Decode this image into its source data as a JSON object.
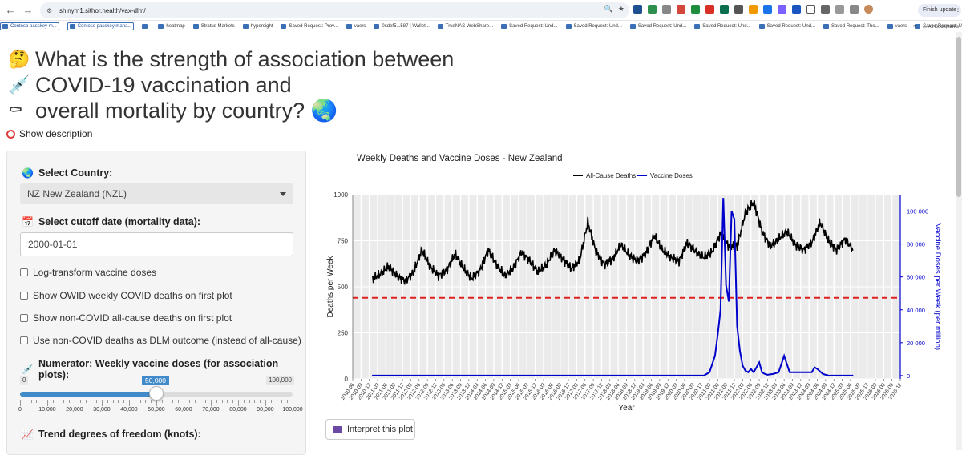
{
  "browser": {
    "url": "shinym1.sithor.health/vax-dlm/",
    "nav": [
      "←",
      "→",
      "↻"
    ],
    "finish_update": "Finish update",
    "bookmarks": [
      {
        "label": "Contoso passkey m...",
        "boxed": true
      },
      {
        "label": "Contoso passkey mana...",
        "boxed": true
      },
      {
        "label": "",
        "boxed": false
      },
      {
        "label": "heatmap",
        "boxed": false
      },
      {
        "label": "Stratus Markets",
        "boxed": false
      },
      {
        "label": "hypersight",
        "boxed": false
      },
      {
        "label": "Saved Request: Prov...",
        "boxed": false
      },
      {
        "label": "vaers",
        "boxed": false
      },
      {
        "label": "0xdef5...587 | Wallet...",
        "boxed": false
      },
      {
        "label": "TrueNAS WebShare...",
        "boxed": false
      },
      {
        "label": "Saved Request: Und...",
        "boxed": false
      },
      {
        "label": "Saved Request: Und...",
        "boxed": false
      },
      {
        "label": "Saved Request: Und...",
        "boxed": false
      },
      {
        "label": "Saved Request: Und...",
        "boxed": false
      },
      {
        "label": "Saved Request: Und...",
        "boxed": false
      },
      {
        "label": "Saved Request: The...",
        "boxed": false
      },
      {
        "label": "vaers",
        "boxed": false
      },
      {
        "label": "Saved Request: Und...",
        "boxed": false
      }
    ],
    "more": "»",
    "all_bookmarks": "All Bookmarks"
  },
  "page": {
    "title_lines": [
      {
        "emoji": "🤔",
        "text": "What is the strength of association between"
      },
      {
        "emoji": "💉",
        "text": "COVID-19 vaccination and"
      },
      {
        "emoji": "⚰",
        "text": "overall mortality by country? 🌏"
      }
    ],
    "show_description": "Show description"
  },
  "sidebar": {
    "country_label": "Select Country:",
    "country_value": "NZ New Zealand (NZL)",
    "cutoff_label": "Select cutoff date (mortality data):",
    "cutoff_value": "2000-01-01",
    "checkboxes": [
      "Log-transform vaccine doses",
      "Show OWID weekly COVID deaths on first plot",
      "Show non-COVID all-cause deaths on first plot",
      "Use non-COVID deaths as DLM outcome (instead of all-cause)"
    ],
    "numerator_label": "Numerator: Weekly vaccine doses (for association plots):",
    "slider": {
      "min": 0,
      "max": 100000,
      "value": 50000,
      "min_label": "0",
      "max_label": "100,000",
      "value_label": "50,000",
      "tick_labels": [
        "0",
        "10,000",
        "20,000",
        "30,000",
        "40,000",
        "50,000",
        "60,000",
        "70,000",
        "80,000",
        "90,000",
        "100,000"
      ]
    },
    "trend_label": "Trend degrees of freedom (knots):"
  },
  "interpret_button": "Interpret this plot",
  "colors": {
    "deaths": "#000000",
    "vaccine": "#0000cc",
    "threshold": "#e01f1f",
    "slider": "#428bca"
  },
  "chart_data": {
    "type": "line",
    "title": "Weekly Deaths and Vaccine Doses - New Zealand",
    "xlabel": "Year",
    "ylabel": "Deaths per Week",
    "y2label": "Vaccine Doses per Week (per million)",
    "ylim": [
      0,
      1000
    ],
    "y2lim": [
      -2000,
      110000
    ],
    "yticks": [
      0,
      250,
      500,
      750,
      1000
    ],
    "y2ticks": [
      0,
      20000,
      40000,
      60000,
      80000,
      100000
    ],
    "y2tick_labels": [
      "0",
      "20 000",
      "40 000",
      "60 000",
      "80 000",
      "100 000"
    ],
    "xrange": [
      "2010-06",
      "2026-12"
    ],
    "x_tick_labels": [
      "2010-06",
      "2010-09",
      "2010-12",
      "2011-03",
      "2011-06",
      "2011-09",
      "2011-12",
      "2012-03",
      "2012-06",
      "2012-09",
      "2012-12",
      "2013-03",
      "2013-06",
      "2013-09",
      "2013-12",
      "2014-03",
      "2014-06",
      "2014-09",
      "2014-12",
      "2015-03",
      "2015-06",
      "2015-09",
      "2015-12",
      "2016-03",
      "2016-06",
      "2016-09",
      "2016-12",
      "2017-03",
      "2017-06",
      "2017-09",
      "2017-12",
      "2018-03",
      "2018-06",
      "2018-09",
      "2018-12",
      "2019-03",
      "2019-06",
      "2019-09",
      "2019-12",
      "2020-03",
      "2020-06",
      "2020-09",
      "2020-12",
      "2021-03",
      "2021-06",
      "2021-09",
      "2021-12",
      "2022-03",
      "2022-06",
      "2022-09",
      "2022-12",
      "2023-03",
      "2023-06",
      "2023-09",
      "2023-12",
      "2024-03",
      "2024-06",
      "2024-09",
      "2024-12",
      "2025-03",
      "2025-06",
      "2025-09",
      "2025-12",
      "2026-03",
      "2026-06",
      "2026-09",
      "2026-12"
    ],
    "legend": "top-center",
    "grid": true,
    "threshold_y": 440,
    "series": [
      {
        "name": "All-Cause Deaths",
        "axis": "left",
        "x": [
          "2011-01",
          "2011-04",
          "2011-07",
          "2011-10",
          "2012-01",
          "2012-04",
          "2012-07",
          "2012-10",
          "2013-01",
          "2013-04",
          "2013-07",
          "2013-10",
          "2014-01",
          "2014-04",
          "2014-07",
          "2014-10",
          "2015-01",
          "2015-04",
          "2015-07",
          "2015-10",
          "2016-01",
          "2016-04",
          "2016-07",
          "2016-10",
          "2017-01",
          "2017-04",
          "2017-07",
          "2017-10",
          "2018-01",
          "2018-04",
          "2018-07",
          "2018-10",
          "2019-01",
          "2019-04",
          "2019-07",
          "2019-10",
          "2020-01",
          "2020-04",
          "2020-07",
          "2020-10",
          "2021-01",
          "2021-04",
          "2021-07",
          "2021-10",
          "2022-01",
          "2022-04",
          "2022-07",
          "2022-10",
          "2023-01",
          "2023-04",
          "2023-07",
          "2023-10",
          "2024-01",
          "2024-04",
          "2024-07",
          "2024-10",
          "2025-01",
          "2025-04",
          "2025-07"
        ],
        "values": [
          540,
          570,
          610,
          560,
          530,
          580,
          700,
          610,
          560,
          590,
          680,
          600,
          545,
          590,
          700,
          620,
          560,
          600,
          690,
          640,
          580,
          620,
          700,
          650,
          600,
          640,
          850,
          690,
          620,
          650,
          730,
          670,
          640,
          680,
          780,
          700,
          660,
          640,
          740,
          690,
          660,
          690,
          790,
          720,
          720,
          900,
          960,
          800,
          720,
          760,
          800,
          730,
          700,
          740,
          850,
          750,
          700,
          760,
          700
        ]
      },
      {
        "name": "Vaccine Doses",
        "axis": "right",
        "x": [
          "2011-01",
          "2021-01",
          "2021-03",
          "2021-05",
          "2021-06",
          "2021-07",
          "2021-08",
          "2021-09",
          "2021-10",
          "2021-11",
          "2021-12",
          "2022-01",
          "2022-02",
          "2022-03",
          "2022-04",
          "2022-05",
          "2022-06",
          "2022-07",
          "2022-09",
          "2022-10",
          "2022-11",
          "2022-12",
          "2023-02",
          "2023-04",
          "2023-06",
          "2023-08",
          "2023-10",
          "2023-12",
          "2024-02",
          "2024-04",
          "2024-05",
          "2024-06",
          "2024-08",
          "2024-10",
          "2025-01",
          "2025-07"
        ],
        "values": [
          0,
          0,
          2000,
          12000,
          25000,
          40000,
          108000,
          55000,
          45000,
          100000,
          95000,
          30000,
          15000,
          6000,
          3000,
          2000,
          4000,
          2000,
          8000,
          2000,
          1000,
          500,
          1000,
          2000,
          12000,
          2000,
          2000,
          2000,
          2000,
          2000,
          5000,
          4000,
          1000,
          0,
          0,
          0
        ]
      }
    ]
  }
}
